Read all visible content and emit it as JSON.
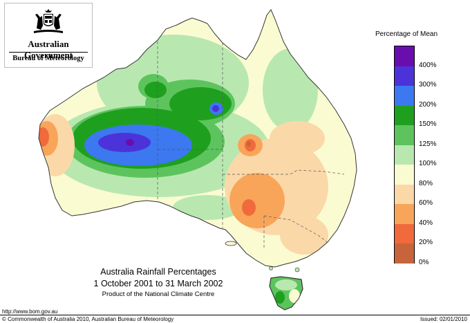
{
  "header": {
    "government": "Australian Government",
    "bureau": "Bureau of Meteorology",
    "crest_icon": "coat-of-arms-icon"
  },
  "map": {
    "title": "Australia Rainfall Percentages",
    "period": "1 October 2001 to 31 March 2002",
    "credit": "Product of the National Climate Centre",
    "region": "Australia",
    "colors": {
      "ocean": "#ffffff",
      "outline": "#333333",
      "borders": "#555555"
    }
  },
  "legend": {
    "title": "Percentage of Mean",
    "bins": [
      {
        "label": "",
        "color": "#6a0dad"
      },
      {
        "label": "400%",
        "color": "#4c33d9"
      },
      {
        "label": "300%",
        "color": "#3c78f0"
      },
      {
        "label": "200%",
        "color": "#1ea01e"
      },
      {
        "label": "150%",
        "color": "#5dc45d"
      },
      {
        "label": "125%",
        "color": "#b8e8b0"
      },
      {
        "label": "100%",
        "color": "#fbfbd2"
      },
      {
        "label": "80%",
        "color": "#fbd8a8"
      },
      {
        "label": "60%",
        "color": "#f8a55a"
      },
      {
        "label": "40%",
        "color": "#f06a3c"
      },
      {
        "label": "20%",
        "color": "#c8643c"
      },
      {
        "label": "0%",
        "color": ""
      }
    ]
  },
  "footer": {
    "url": "http://www.bom.gov.au",
    "copyright": "© Commonwealth of Australia 2010, Australian Bureau of Meteorology",
    "issued": "Issued: 02/01/2010"
  }
}
